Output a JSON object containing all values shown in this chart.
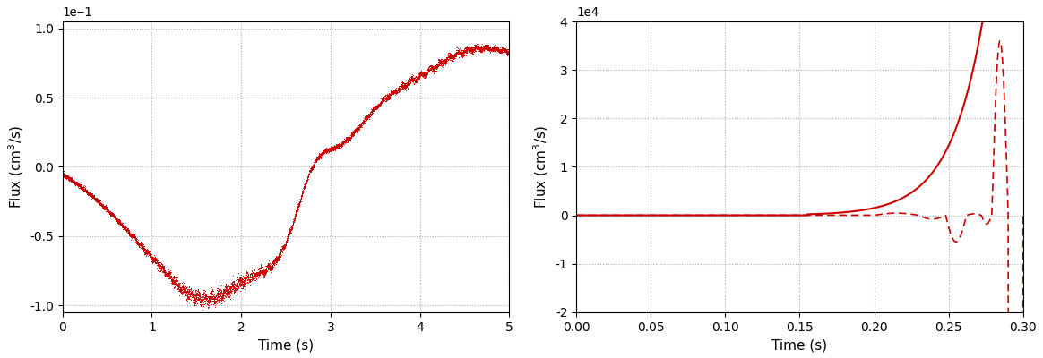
{
  "left_plot": {
    "xlabel": "Time (s)",
    "ylabel": "Flux (cm$^3$/s)",
    "xlim": [
      0,
      5
    ],
    "ylim": [
      -1.05,
      1.05
    ],
    "yticks": [
      -1.0,
      -0.5,
      0.0,
      0.5,
      1.0
    ],
    "xticks": [
      0,
      1,
      2,
      3,
      4,
      5
    ],
    "color": "#cc0000",
    "scale_label": "1e-1"
  },
  "right_plot": {
    "xlabel": "Time (s)",
    "ylabel": "Flux (cm$^3$/s)",
    "xlim": [
      0.0,
      0.3
    ],
    "ylim": [
      -2.0,
      4.0
    ],
    "yticks": [
      -2.0,
      -1.0,
      0.0,
      1.0,
      2.0,
      3.0,
      4.0
    ],
    "xticks": [
      0.0,
      0.05,
      0.1,
      0.15,
      0.2,
      0.25,
      0.3
    ],
    "color": "#cc0000",
    "scale_label": "1e4"
  },
  "background_color": "#ffffff",
  "grid_color": "#aaaaaa"
}
